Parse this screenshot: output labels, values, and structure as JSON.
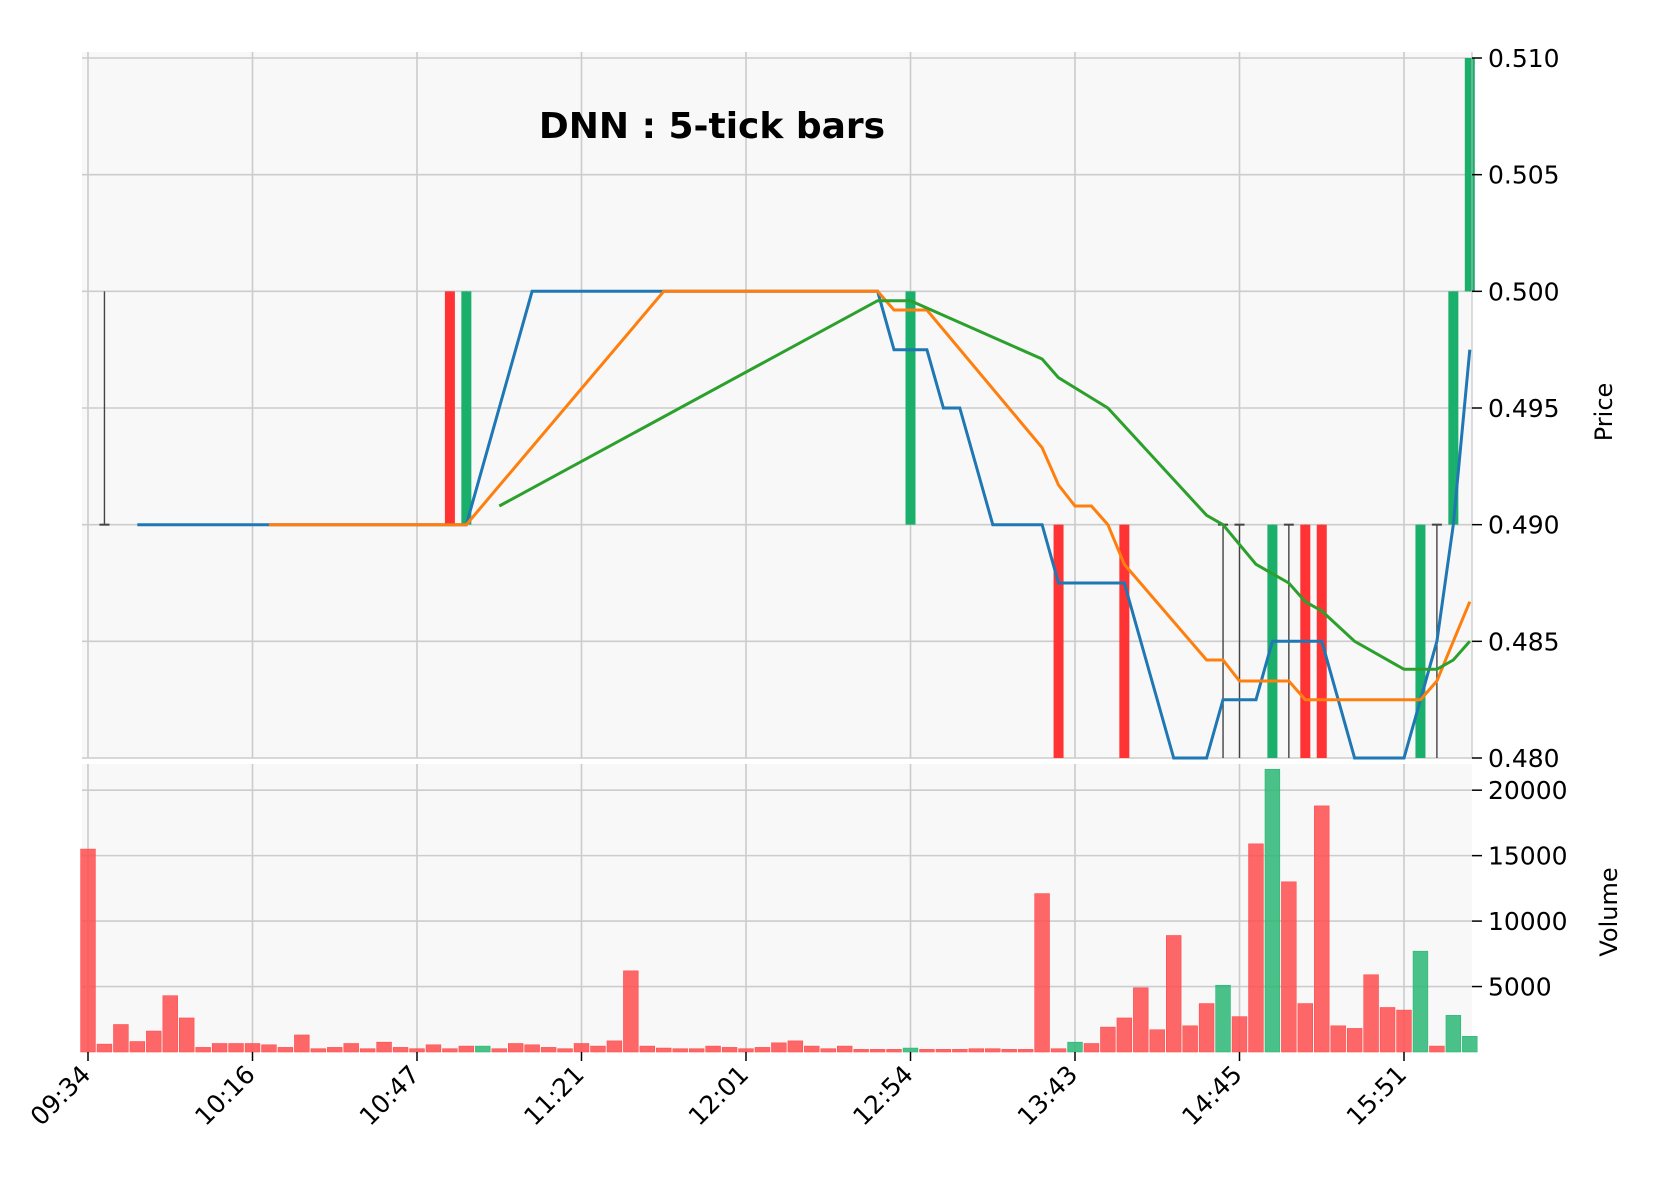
{
  "chart_data": {
    "type": "candlestick",
    "title": "DNN : 5-tick bars",
    "price_panel": {
      "ylabel": "Price",
      "ylim": [
        0.48,
        0.51
      ],
      "yticks": [
        "0.480",
        "0.485",
        "0.490",
        "0.495",
        "0.500",
        "0.505",
        "0.510"
      ],
      "grid": true,
      "colors": {
        "up": "#1aaf6a",
        "down": "#ff3333",
        "neutral": "#444444"
      },
      "candles": [
        {
          "i": 1,
          "open": 0.49,
          "high": 0.5,
          "low": 0.49,
          "close": 0.49
        },
        {
          "i": 22,
          "open": 0.5,
          "high": 0.5,
          "low": 0.49,
          "close": 0.49
        },
        {
          "i": 23,
          "open": 0.49,
          "high": 0.5,
          "low": 0.49,
          "close": 0.5
        },
        {
          "i": 50,
          "open": 0.49,
          "high": 0.5,
          "low": 0.49,
          "close": 0.5
        },
        {
          "i": 59,
          "open": 0.49,
          "high": 0.49,
          "low": 0.48,
          "close": 0.48
        },
        {
          "i": 63,
          "open": 0.49,
          "high": 0.49,
          "low": 0.48,
          "close": 0.48
        },
        {
          "i": 69,
          "open": 0.49,
          "high": 0.49,
          "low": 0.48,
          "close": 0.49
        },
        {
          "i": 70,
          "open": 0.49,
          "high": 0.49,
          "low": 0.48,
          "close": 0.49
        },
        {
          "i": 72,
          "open": 0.48,
          "high": 0.49,
          "low": 0.48,
          "close": 0.49
        },
        {
          "i": 73,
          "open": 0.49,
          "high": 0.49,
          "low": 0.48,
          "close": 0.49
        },
        {
          "i": 74,
          "open": 0.49,
          "high": 0.49,
          "low": 0.48,
          "close": 0.48
        },
        {
          "i": 75,
          "open": 0.49,
          "high": 0.49,
          "low": 0.48,
          "close": 0.48
        },
        {
          "i": 81,
          "open": 0.48,
          "high": 0.49,
          "low": 0.48,
          "close": 0.49
        },
        {
          "i": 82,
          "open": 0.49,
          "high": 0.49,
          "low": 0.48,
          "close": 0.49
        },
        {
          "i": 83,
          "open": 0.49,
          "high": 0.5,
          "low": 0.49,
          "close": 0.5
        },
        {
          "i": 84,
          "open": 0.5,
          "high": 0.51,
          "low": 0.5,
          "close": 0.51
        }
      ],
      "moving_averages": [
        {
          "color": "#1f77b4",
          "points": [
            [
              3,
              0.49
            ],
            [
              11,
              0.49
            ],
            [
              23,
              0.49
            ],
            [
              27,
              0.5
            ],
            [
              35,
              0.5
            ],
            [
              48,
              0.5
            ],
            [
              49,
              0.4975
            ],
            [
              51,
              0.4975
            ],
            [
              52,
              0.495
            ],
            [
              53,
              0.495
            ],
            [
              55,
              0.49
            ],
            [
              58,
              0.49
            ],
            [
              59,
              0.4875
            ],
            [
              62,
              0.4875
            ],
            [
              63,
              0.4875
            ],
            [
              66,
              0.48
            ],
            [
              68,
              0.48
            ],
            [
              69,
              0.4825
            ],
            [
              71,
              0.4825
            ],
            [
              72,
              0.485
            ],
            [
              75,
              0.485
            ],
            [
              77,
              0.48
            ],
            [
              80,
              0.48
            ],
            [
              81,
              0.4825
            ],
            [
              82,
              0.485
            ],
            [
              83,
              0.49
            ],
            [
              84,
              0.4975
            ]
          ]
        },
        {
          "color": "#ff7f0e",
          "points": [
            [
              11,
              0.49
            ],
            [
              23,
              0.49
            ],
            [
              35,
              0.5
            ],
            [
              48,
              0.5
            ],
            [
              49,
              0.4992
            ],
            [
              51,
              0.4992
            ],
            [
              58,
              0.4933
            ],
            [
              59,
              0.4917
            ],
            [
              60,
              0.4908
            ],
            [
              61,
              0.4908
            ],
            [
              62,
              0.49
            ],
            [
              63,
              0.4883
            ],
            [
              68,
              0.4842
            ],
            [
              69,
              0.4842
            ],
            [
              70,
              0.4833
            ],
            [
              73,
              0.4833
            ],
            [
              74,
              0.4825
            ],
            [
              81,
              0.4825
            ],
            [
              82,
              0.4833
            ],
            [
              83,
              0.485
            ],
            [
              84,
              0.4867
            ]
          ]
        },
        {
          "color": "#2ca02c",
          "points": [
            [
              25,
              0.4908
            ],
            [
              48,
              0.4996
            ],
            [
              50,
              0.4996
            ],
            [
              58,
              0.4971
            ],
            [
              59,
              0.4963
            ],
            [
              62,
              0.495
            ],
            [
              68,
              0.4904
            ],
            [
              69,
              0.49
            ],
            [
              71,
              0.4883
            ],
            [
              72,
              0.4879
            ],
            [
              73,
              0.4875
            ],
            [
              74,
              0.4867
            ],
            [
              75,
              0.4863
            ],
            [
              77,
              0.485
            ],
            [
              80,
              0.4838
            ],
            [
              82,
              0.4838
            ],
            [
              83,
              0.4842
            ],
            [
              84,
              0.485
            ]
          ]
        }
      ]
    },
    "volume_panel": {
      "ylabel": "Volume",
      "ylim": [
        0,
        22000
      ],
      "yticks": [
        "5000",
        "10000",
        "15000",
        "20000"
      ],
      "colors": {
        "up": "#2ab774",
        "down": "#ff4d4d"
      },
      "bars": [
        {
          "i": 0,
          "v": 15500,
          "d": "down"
        },
        {
          "i": 1,
          "v": 600,
          "d": "down"
        },
        {
          "i": 2,
          "v": 2100,
          "d": "down"
        },
        {
          "i": 3,
          "v": 800,
          "d": "down"
        },
        {
          "i": 4,
          "v": 1600,
          "d": "down"
        },
        {
          "i": 5,
          "v": 4300,
          "d": "down"
        },
        {
          "i": 6,
          "v": 2600,
          "d": "down"
        },
        {
          "i": 7,
          "v": 350,
          "d": "down"
        },
        {
          "i": 8,
          "v": 650,
          "d": "down"
        },
        {
          "i": 9,
          "v": 650,
          "d": "down"
        },
        {
          "i": 10,
          "v": 650,
          "d": "down"
        },
        {
          "i": 11,
          "v": 550,
          "d": "down"
        },
        {
          "i": 12,
          "v": 350,
          "d": "down"
        },
        {
          "i": 13,
          "v": 1300,
          "d": "down"
        },
        {
          "i": 14,
          "v": 250,
          "d": "down"
        },
        {
          "i": 15,
          "v": 350,
          "d": "down"
        },
        {
          "i": 16,
          "v": 650,
          "d": "down"
        },
        {
          "i": 17,
          "v": 250,
          "d": "down"
        },
        {
          "i": 18,
          "v": 750,
          "d": "down"
        },
        {
          "i": 19,
          "v": 350,
          "d": "down"
        },
        {
          "i": 20,
          "v": 250,
          "d": "down"
        },
        {
          "i": 21,
          "v": 550,
          "d": "down"
        },
        {
          "i": 22,
          "v": 250,
          "d": "down"
        },
        {
          "i": 23,
          "v": 450,
          "d": "down"
        },
        {
          "i": 24,
          "v": 450,
          "d": "up"
        },
        {
          "i": 25,
          "v": 250,
          "d": "down"
        },
        {
          "i": 26,
          "v": 650,
          "d": "down"
        },
        {
          "i": 27,
          "v": 550,
          "d": "down"
        },
        {
          "i": 28,
          "v": 350,
          "d": "down"
        },
        {
          "i": 29,
          "v": 250,
          "d": "down"
        },
        {
          "i": 30,
          "v": 650,
          "d": "down"
        },
        {
          "i": 31,
          "v": 450,
          "d": "down"
        },
        {
          "i": 32,
          "v": 850,
          "d": "down"
        },
        {
          "i": 33,
          "v": 6200,
          "d": "down"
        },
        {
          "i": 34,
          "v": 450,
          "d": "down"
        },
        {
          "i": 35,
          "v": 300,
          "d": "down"
        },
        {
          "i": 36,
          "v": 250,
          "d": "down"
        },
        {
          "i": 37,
          "v": 250,
          "d": "down"
        },
        {
          "i": 38,
          "v": 450,
          "d": "down"
        },
        {
          "i": 39,
          "v": 350,
          "d": "down"
        },
        {
          "i": 40,
          "v": 250,
          "d": "down"
        },
        {
          "i": 41,
          "v": 350,
          "d": "down"
        },
        {
          "i": 42,
          "v": 700,
          "d": "down"
        },
        {
          "i": 43,
          "v": 850,
          "d": "down"
        },
        {
          "i": 44,
          "v": 450,
          "d": "down"
        },
        {
          "i": 45,
          "v": 250,
          "d": "down"
        },
        {
          "i": 46,
          "v": 450,
          "d": "down"
        },
        {
          "i": 47,
          "v": 200,
          "d": "down"
        },
        {
          "i": 48,
          "v": 200,
          "d": "down"
        },
        {
          "i": 49,
          "v": 200,
          "d": "down"
        },
        {
          "i": 50,
          "v": 300,
          "d": "up"
        },
        {
          "i": 51,
          "v": 200,
          "d": "down"
        },
        {
          "i": 52,
          "v": 200,
          "d": "down"
        },
        {
          "i": 53,
          "v": 200,
          "d": "down"
        },
        {
          "i": 54,
          "v": 250,
          "d": "down"
        },
        {
          "i": 55,
          "v": 250,
          "d": "down"
        },
        {
          "i": 56,
          "v": 200,
          "d": "down"
        },
        {
          "i": 57,
          "v": 200,
          "d": "down"
        },
        {
          "i": 58,
          "v": 12100,
          "d": "down"
        },
        {
          "i": 59,
          "v": 250,
          "d": "down"
        },
        {
          "i": 60,
          "v": 750,
          "d": "up"
        },
        {
          "i": 61,
          "v": 650,
          "d": "down"
        },
        {
          "i": 62,
          "v": 1900,
          "d": "down"
        },
        {
          "i": 63,
          "v": 2600,
          "d": "down"
        },
        {
          "i": 64,
          "v": 4900,
          "d": "down"
        },
        {
          "i": 65,
          "v": 1700,
          "d": "down"
        },
        {
          "i": 66,
          "v": 8900,
          "d": "down"
        },
        {
          "i": 67,
          "v": 2000,
          "d": "down"
        },
        {
          "i": 68,
          "v": 3700,
          "d": "down"
        },
        {
          "i": 69,
          "v": 5100,
          "d": "up"
        },
        {
          "i": 70,
          "v": 2700,
          "d": "down"
        },
        {
          "i": 71,
          "v": 15900,
          "d": "down"
        },
        {
          "i": 72,
          "v": 21600,
          "d": "up"
        },
        {
          "i": 73,
          "v": 13000,
          "d": "down"
        },
        {
          "i": 74,
          "v": 3700,
          "d": "down"
        },
        {
          "i": 75,
          "v": 18800,
          "d": "down"
        },
        {
          "i": 76,
          "v": 2000,
          "d": "down"
        },
        {
          "i": 77,
          "v": 1800,
          "d": "down"
        },
        {
          "i": 78,
          "v": 5900,
          "d": "down"
        },
        {
          "i": 79,
          "v": 3400,
          "d": "down"
        },
        {
          "i": 80,
          "v": 3200,
          "d": "down"
        },
        {
          "i": 81,
          "v": 7700,
          "d": "up"
        },
        {
          "i": 82,
          "v": 450,
          "d": "down"
        },
        {
          "i": 83,
          "v": 2800,
          "d": "up"
        },
        {
          "i": 84,
          "v": 1200,
          "d": "up"
        }
      ]
    },
    "x_axis": {
      "ticks": [
        {
          "i": 0,
          "label": "09:34"
        },
        {
          "i": 10,
          "label": "10:16"
        },
        {
          "i": 20,
          "label": "10:47"
        },
        {
          "i": 30,
          "label": "11:21"
        },
        {
          "i": 40,
          "label": "12:01"
        },
        {
          "i": 50,
          "label": "12:54"
        },
        {
          "i": 60,
          "label": "13:43"
        },
        {
          "i": 70,
          "label": "14:45"
        },
        {
          "i": 80,
          "label": "15:51"
        }
      ],
      "n_bars": 85
    }
  }
}
